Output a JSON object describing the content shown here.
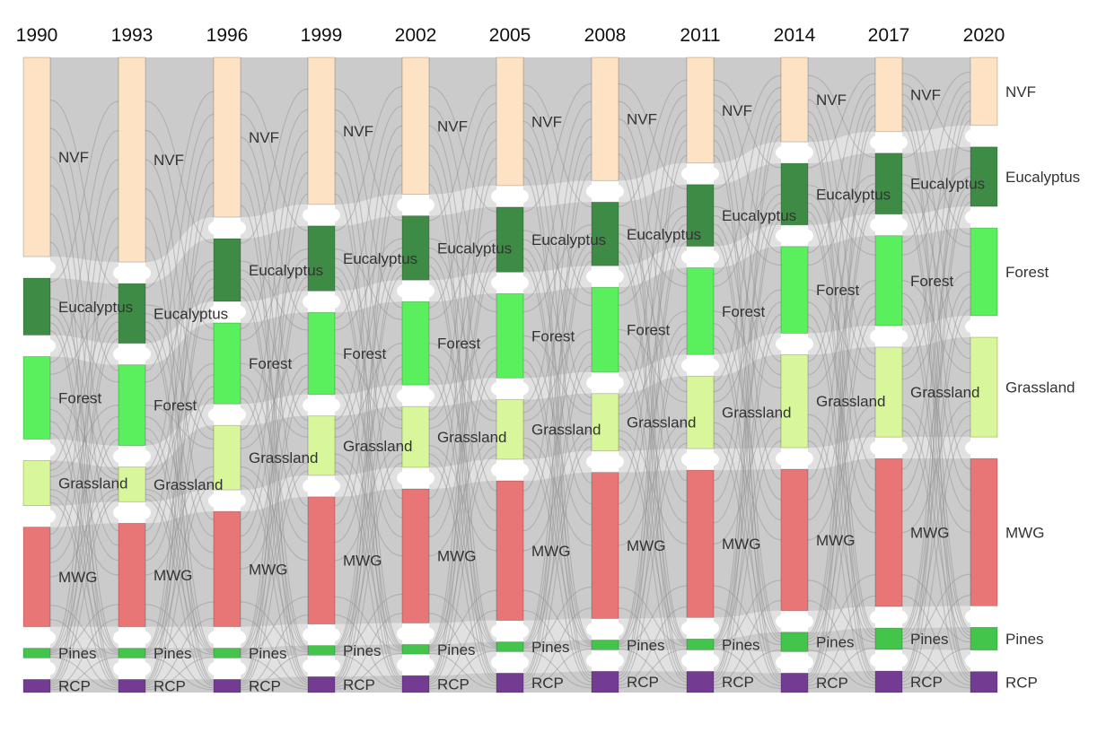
{
  "chart_data": {
    "type": "sankey",
    "years": [
      "1990",
      "1993",
      "1996",
      "1999",
      "2002",
      "2005",
      "2008",
      "2011",
      "2014",
      "2017",
      "2020"
    ],
    "categories": [
      "NVF",
      "Eucalyptus",
      "Forest",
      "Grassland",
      "MWG",
      "Pines",
      "RCP"
    ],
    "colors": {
      "NVF": "#fde3c4",
      "Eucalyptus": "#3e8b45",
      "Forest": "#59ef5d",
      "Grassland": "#d8f79a",
      "MWG": "#e87676",
      "Pines": "#43c44a",
      "RCP": "#743b93",
      "link": "#c9c9c9"
    },
    "values_percent": {
      "1990": {
        "NVF": 35.0,
        "Eucalyptus": 10.0,
        "Forest": 14.5,
        "Grassland": 7.9,
        "MWG": 17.5,
        "Pines": 1.7,
        "RCP": 2.3
      },
      "1993": {
        "NVF": 36.0,
        "Eucalyptus": 10.5,
        "Forest": 14.2,
        "Grassland": 6.1,
        "MWG": 18.2,
        "Pines": 1.7,
        "RCP": 2.3
      },
      "1996": {
        "NVF": 28.0,
        "Eucalyptus": 11.0,
        "Forest": 14.2,
        "Grassland": 11.3,
        "MWG": 20.2,
        "Pines": 1.7,
        "RCP": 2.3
      },
      "1999": {
        "NVF": 26.0,
        "Eucalyptus": 11.5,
        "Forest": 14.5,
        "Grassland": 10.5,
        "MWG": 22.5,
        "Pines": 1.7,
        "RCP": 2.8
      },
      "2002": {
        "NVF": 24.3,
        "Eucalyptus": 11.4,
        "Forest": 14.8,
        "Grassland": 10.8,
        "MWG": 23.8,
        "Pines": 1.7,
        "RCP": 3.0
      },
      "2005": {
        "NVF": 22.5,
        "Eucalyptus": 11.4,
        "Forest": 14.8,
        "Grassland": 10.5,
        "MWG": 24.5,
        "Pines": 1.7,
        "RCP": 3.4
      },
      "2008": {
        "NVF": 21.5,
        "Eucalyptus": 11.1,
        "Forest": 14.8,
        "Grassland": 10.0,
        "MWG": 25.5,
        "Pines": 1.7,
        "RCP": 3.7
      },
      "2011": {
        "NVF": 18.5,
        "Eucalyptus": 10.8,
        "Forest": 15.2,
        "Grassland": 12.7,
        "MWG": 25.8,
        "Pines": 1.9,
        "RCP": 3.7
      },
      "2014": {
        "NVF": 14.8,
        "Eucalyptus": 10.8,
        "Forest": 15.2,
        "Grassland": 16.3,
        "MWG": 24.8,
        "Pines": 3.4,
        "RCP": 3.4
      },
      "2017": {
        "NVF": 12.8,
        "Eucalyptus": 10.5,
        "Forest": 15.5,
        "Grassland": 15.5,
        "MWG": 25.5,
        "Pines": 3.7,
        "RCP": 3.7
      },
      "2020": {
        "NVF": 12.0,
        "Eucalyptus": 10.5,
        "Forest": 15.5,
        "Grassland": 17.6,
        "MWG": 26.0,
        "Pines": 4.0,
        "RCP": 3.7
      }
    },
    "node_labels": {
      "NVF": "NVF",
      "Eucalyptus": "Eucalyptus",
      "Forest": "Forest",
      "Grassland": "Grassland",
      "MWG": "MWG",
      "Pines": "Pines",
      "RCP": "RCP"
    },
    "title": "",
    "legend": "none"
  }
}
